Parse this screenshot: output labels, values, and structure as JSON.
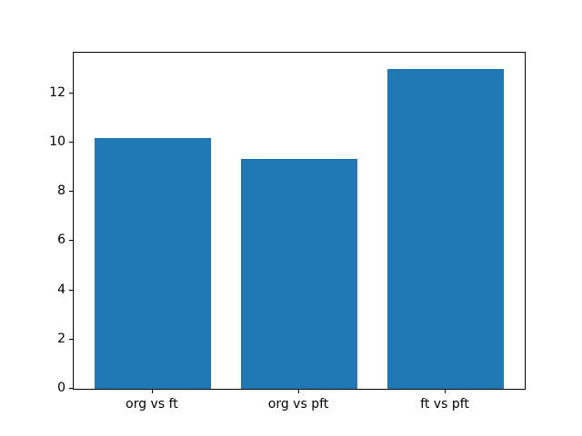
{
  "chart_data": {
    "type": "bar",
    "title": "",
    "categories": [
      "org vs ft",
      "org vs pft",
      "ft vs pft"
    ],
    "values": [
      10.2,
      9.35,
      13.0
    ],
    "xlabel": "",
    "ylabel": "",
    "ylim": [
      0,
      13.65
    ],
    "yticks": [
      0,
      2,
      4,
      6,
      8,
      10,
      12
    ],
    "bar_width_fraction": 0.8,
    "bar_color": "#1f77b4",
    "spine_color": "#000000",
    "text_color": "#000000",
    "background_color": "#ffffff",
    "grid": "off",
    "legend": "none"
  }
}
